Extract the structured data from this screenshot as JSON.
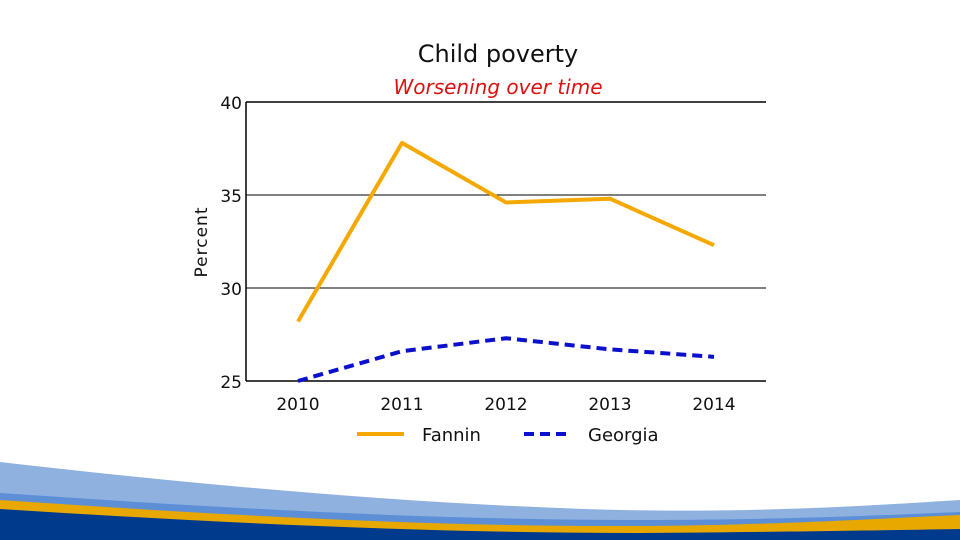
{
  "chart_data": {
    "type": "line",
    "title": "Child poverty",
    "subtitle": "Worsening over time",
    "xlabel": "",
    "ylabel": "Percent",
    "x": [
      2010,
      2011,
      2012,
      2013,
      2014
    ],
    "x_tick_labels": [
      "2010",
      "2011",
      "2012",
      "2013",
      "2014"
    ],
    "ylim": [
      25,
      40
    ],
    "y_ticks": [
      25,
      30,
      35,
      40
    ],
    "y_tick_labels": [
      "25",
      "30",
      "35",
      "40"
    ],
    "grid": "horizontal",
    "legend_position": "bottom",
    "series": [
      {
        "name": "Fannin",
        "values": [
          28.2,
          37.8,
          34.6,
          34.8,
          32.3
        ],
        "color": "#F5A800",
        "style": "solid"
      },
      {
        "name": "Georgia",
        "values": [
          25.0,
          26.6,
          27.3,
          26.7,
          26.3
        ],
        "color": "#0A10CC",
        "style": "dashed"
      }
    ]
  },
  "colors": {
    "subtitle": "#DD1111",
    "wave_light": "#8FB1E0",
    "wave_mid": "#5C8FD6",
    "wave_gold": "#E8A800",
    "wave_dark": "#003A8C"
  }
}
